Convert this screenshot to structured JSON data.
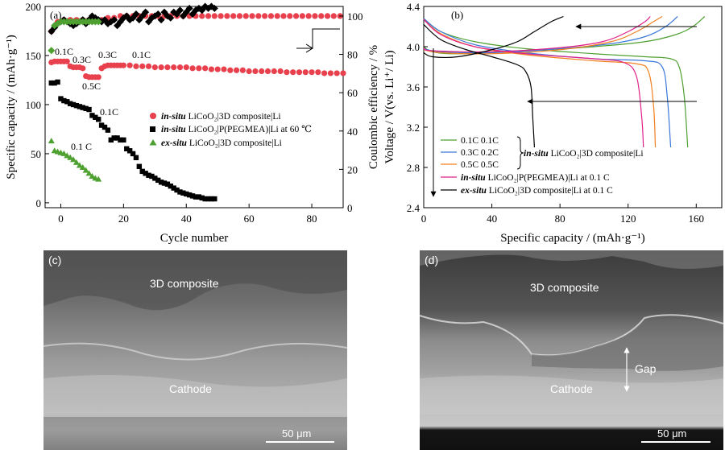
{
  "chart_data": [
    {
      "panel": "(a)",
      "type": "scatter",
      "xlabel": "Cycle number",
      "ylabel": "Specific capacity / (mAh·g⁻¹)",
      "ylabel_right": "Coulombic efficiency / %",
      "xlim": [
        -5,
        90
      ],
      "ylim": [
        -5,
        200
      ],
      "ylim_right": [
        0,
        105
      ],
      "x_ticks": [
        "0",
        "20",
        "40",
        "60",
        "80"
      ],
      "y_ticks": [
        "0",
        "50",
        "100",
        "150",
        "200"
      ],
      "y_ticks_right": [
        "0",
        "20",
        "40",
        "60",
        "80",
        "100"
      ],
      "grid": false,
      "legend_position": "right-middle",
      "colors": {
        "insitu_3d": "#e8404c",
        "peg": "#000000",
        "exsitu": "#4ea030"
      },
      "legend": [
        {
          "italic": "in-situ",
          "rest": " LiCoO₂|3D composite|Li"
        },
        {
          "italic": "in-situ",
          "rest": " LiCoO₂|P(PEGMEA)|Li at 60 ℃"
        },
        {
          "italic": "ex-situ",
          "rest": " LiCoO₂|3D composite|Li"
        }
      ],
      "annotations": [
        "0.1C",
        "0.3C",
        "0.3C",
        "0.1C",
        "0.5C",
        "0.1C",
        "0.1 C"
      ],
      "series": [
        {
          "role": "in-situ capacity",
          "x": [
            -3,
            -2,
            -1,
            0,
            1,
            2,
            3,
            4,
            5,
            6,
            7,
            8,
            9,
            10,
            11,
            12,
            13,
            14,
            15,
            16,
            17,
            18,
            19,
            20,
            22,
            24,
            26,
            28,
            30,
            32,
            34,
            36,
            38,
            40,
            42,
            44,
            46,
            48,
            50,
            52,
            54,
            56,
            58,
            60,
            62,
            64,
            66,
            68,
            70,
            72,
            74,
            76,
            78,
            80,
            82,
            84,
            86,
            88,
            90
          ],
          "y": [
            143,
            144,
            144,
            144,
            144,
            144,
            139,
            138,
            138,
            138,
            137,
            129,
            128,
            128,
            128,
            128,
            137,
            139,
            140,
            140,
            140,
            140,
            140,
            140,
            140,
            139,
            139,
            139,
            138,
            138,
            138,
            138,
            138,
            138,
            137,
            137,
            137,
            136,
            136,
            136,
            135,
            135,
            135,
            134,
            134,
            134,
            134,
            134,
            134,
            133,
            133,
            133,
            133,
            133,
            133,
            132,
            132,
            132,
            132
          ]
        },
        {
          "role": "in-situ efficiency",
          "x": [
            -3,
            -1,
            1,
            3,
            5,
            7,
            9,
            11,
            13,
            15,
            17,
            19,
            21,
            23,
            25,
            27,
            29,
            31,
            33,
            35,
            37,
            39,
            41,
            43,
            45,
            47,
            49,
            51,
            53,
            55,
            57,
            59,
            61,
            63,
            65,
            67,
            69,
            71,
            73,
            75,
            77,
            79,
            81,
            83,
            85,
            87,
            89
          ],
          "y": [
            92,
            97,
            98,
            98,
            98,
            98,
            98,
            98,
            98,
            99,
            99,
            100,
            100,
            100,
            100,
            100,
            100,
            100,
            100,
            100,
            100,
            100,
            100,
            100,
            100,
            100,
            100,
            100,
            100,
            100,
            100,
            100,
            100,
            100,
            100,
            100,
            100,
            100,
            100,
            100,
            100,
            100,
            100,
            100,
            100,
            100,
            100
          ]
        },
        {
          "role": "P(PEGMEA) capacity",
          "x": [
            -3,
            -2,
            -1,
            0,
            1,
            2,
            3,
            4,
            5,
            6,
            7,
            8,
            9,
            10,
            11,
            12,
            13,
            14,
            15,
            16,
            17,
            18,
            19,
            20,
            21,
            22,
            23,
            24,
            25,
            26,
            27,
            28,
            29,
            30,
            31,
            32,
            33,
            34,
            35,
            36,
            37,
            38,
            39,
            40,
            41,
            42,
            43,
            44,
            45,
            46,
            47,
            48,
            49
          ],
          "y": [
            122,
            122,
            123,
            106,
            104,
            103,
            101,
            100,
            99,
            98,
            97,
            96,
            95,
            89,
            87,
            85,
            79,
            77,
            74,
            64,
            66,
            66,
            64,
            64,
            55,
            53,
            50,
            46,
            37,
            32,
            30,
            28,
            27,
            25,
            23,
            21,
            20,
            19,
            17,
            15,
            13,
            11,
            10,
            9,
            8,
            7,
            6,
            6,
            5,
            4,
            4,
            4,
            4
          ]
        },
        {
          "role": "P(PEGMEA) efficiency",
          "x": [
            -3,
            -2,
            -1,
            0,
            1,
            2,
            3,
            4,
            5,
            6,
            7,
            8,
            9,
            10,
            11,
            12,
            13,
            14,
            15,
            16,
            17,
            18,
            19,
            20,
            21,
            22,
            23,
            24,
            25,
            26,
            27,
            28,
            29,
            30,
            31,
            32,
            33,
            34,
            35,
            36,
            37,
            38,
            39,
            40,
            41,
            42,
            43,
            44,
            45,
            46,
            47,
            48,
            49
          ],
          "y": [
            92,
            94,
            96,
            97,
            98,
            97,
            96,
            95,
            96,
            97,
            98,
            96,
            98,
            100,
            99,
            98,
            97,
            98,
            96,
            97,
            98,
            95,
            97,
            99,
            100,
            98,
            99,
            101,
            98,
            100,
            102,
            97,
            99,
            100,
            101,
            98,
            102,
            100,
            99,
            102,
            101,
            103,
            100,
            102,
            104,
            101,
            103,
            104,
            103,
            105,
            104,
            105,
            104
          ]
        },
        {
          "role": "ex-situ capacity",
          "x": [
            -3,
            -2,
            -1,
            0,
            1,
            2,
            3,
            4,
            5,
            6,
            7,
            8,
            9,
            10,
            11,
            12
          ],
          "y": [
            63,
            53,
            52,
            51,
            50,
            48,
            46,
            44,
            41,
            38,
            36,
            33,
            30,
            27,
            25,
            24
          ]
        },
        {
          "role": "ex-situ efficiency",
          "x": [
            -3,
            -2,
            -1,
            0,
            1,
            2,
            3,
            4,
            5,
            6,
            7,
            8,
            9,
            10,
            11,
            12
          ],
          "y": [
            82,
            95,
            96,
            97,
            97,
            97,
            97,
            97,
            97,
            97,
            97,
            97,
            97,
            97,
            97,
            97
          ]
        }
      ]
    },
    {
      "panel": "(b)",
      "type": "line",
      "xlabel": "Specific capacity / (mAh·g⁻¹)",
      "ylabel": "Voltage / V(vs. Li⁺/ Li)",
      "xlim": [
        0,
        175
      ],
      "ylim": [
        2.4,
        4.4
      ],
      "x_ticks": [
        "0",
        "40",
        "80",
        "120",
        "160"
      ],
      "y_ticks": [
        "2.4",
        "2.8",
        "3.2",
        "3.6",
        "4.0",
        "4.4"
      ],
      "grid": false,
      "legend_position": "bottom-left",
      "legend": [
        {
          "text": "0.1C  0.1C",
          "color": "#4ea030"
        },
        {
          "text": "0.3C  0.2C",
          "color": "#3a78d8"
        },
        {
          "text": "0.5C  0.5C",
          "color": "#f08020"
        },
        {
          "italic": "in-situ",
          "rest": " LiCoO₂|P(PEGMEA)|Li at 0.1 C",
          "color": "#e0208a"
        },
        {
          "italic": "ex-situ",
          "rest": " LiCoO₂|3D composite|Li at 0.1 C",
          "color": "#000000"
        }
      ],
      "brace_label": {
        "italic": "in-situ",
        "rest": " LiCoO₂|3D composite|Li"
      },
      "series": [
        {
          "name": "0.1C  0.1C",
          "color": "#4ea030",
          "charge": [
            [
              0,
              4.0
            ],
            [
              5,
              3.95
            ],
            [
              20,
              3.93
            ],
            [
              60,
              3.96
            ],
            [
              100,
              4.0
            ],
            [
              130,
              4.05
            ],
            [
              148,
              4.12
            ],
            [
              158,
              4.2
            ],
            [
              165,
              4.3
            ]
          ],
          "discharge": [
            [
              0,
              4.28
            ],
            [
              10,
              4.15
            ],
            [
              30,
              4.05
            ],
            [
              60,
              3.98
            ],
            [
              100,
              3.93
            ],
            [
              130,
              3.9
            ],
            [
              145,
              3.88
            ],
            [
              150,
              3.8
            ],
            [
              153,
              3.5
            ],
            [
              155,
              3.0
            ]
          ]
        },
        {
          "name": "0.3C  0.2C",
          "color": "#3a78d8",
          "charge": [
            [
              0,
              3.98
            ],
            [
              10,
              3.95
            ],
            [
              40,
              3.94
            ],
            [
              80,
              3.98
            ],
            [
              110,
              4.03
            ],
            [
              130,
              4.1
            ],
            [
              142,
              4.2
            ],
            [
              149,
              4.3
            ]
          ],
          "discharge": [
            [
              0,
              4.28
            ],
            [
              10,
              4.15
            ],
            [
              30,
              4.02
            ],
            [
              60,
              3.94
            ],
            [
              100,
              3.88
            ],
            [
              130,
              3.86
            ],
            [
              140,
              3.8
            ],
            [
              143,
              3.5
            ],
            [
              145,
              3.0
            ]
          ]
        },
        {
          "name": "0.5C  0.5C",
          "color": "#f08020",
          "charge": [
            [
              0,
              3.97
            ],
            [
              10,
              3.94
            ],
            [
              40,
              3.93
            ],
            [
              80,
              3.97
            ],
            [
              110,
              4.05
            ],
            [
              125,
              4.15
            ],
            [
              135,
              4.25
            ],
            [
              140,
              4.3
            ]
          ],
          "discharge": [
            [
              0,
              4.27
            ],
            [
              10,
              4.13
            ],
            [
              30,
              4.0
            ],
            [
              60,
              3.92
            ],
            [
              100,
              3.86
            ],
            [
              125,
              3.83
            ],
            [
              132,
              3.75
            ],
            [
              135,
              3.4
            ],
            [
              136,
              3.0
            ]
          ]
        },
        {
          "name": "in-situ LiCoO₂|P(PEGMEA)|Li at 0.1 C",
          "color": "#e0208a",
          "charge": [
            [
              0,
              3.99
            ],
            [
              5,
              3.96
            ],
            [
              40,
              3.95
            ],
            [
              80,
              3.99
            ],
            [
              105,
              4.05
            ],
            [
              120,
              4.15
            ],
            [
              130,
              4.25
            ],
            [
              133,
              4.3
            ]
          ],
          "discharge": [
            [
              0,
              4.27
            ],
            [
              10,
              4.12
            ],
            [
              30,
              4.0
            ],
            [
              60,
              3.93
            ],
            [
              100,
              3.88
            ],
            [
              118,
              3.84
            ],
            [
              125,
              3.7
            ],
            [
              128,
              3.3
            ],
            [
              129,
              3.0
            ]
          ]
        },
        {
          "name": "ex-situ LiCoO₂|3D composite|Li at 0.1 C",
          "color": "#000000",
          "charge": [
            [
              0,
              3.94
            ],
            [
              5,
              3.9
            ],
            [
              20,
              3.9
            ],
            [
              40,
              3.97
            ],
            [
              55,
              4.05
            ],
            [
              65,
              4.15
            ],
            [
              75,
              4.25
            ],
            [
              82,
              4.3
            ]
          ],
          "discharge": [
            [
              0,
              4.22
            ],
            [
              10,
              4.07
            ],
            [
              25,
              3.97
            ],
            [
              40,
              3.9
            ],
            [
              55,
              3.82
            ],
            [
              60,
              3.75
            ],
            [
              63,
              3.6
            ],
            [
              64,
              3.3
            ],
            [
              65,
              3.0
            ]
          ]
        }
      ]
    }
  ],
  "sem": [
    {
      "panel": "(c)",
      "upper_label": "3D composite",
      "lower_label": "Cathode",
      "scale": "50 μm"
    },
    {
      "panel": "(d)",
      "upper_label": "3D composite",
      "lower_label": "Cathode",
      "gap_label": "Gap",
      "scale": "50 μm"
    }
  ]
}
